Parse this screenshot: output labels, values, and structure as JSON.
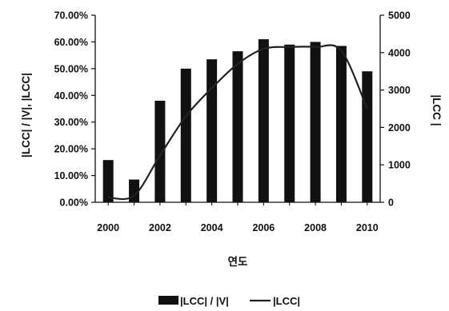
{
  "chart_data": {
    "type": "bar",
    "categories": [
      "2000",
      "2001",
      "2002",
      "2003",
      "2004",
      "2005",
      "2006",
      "2007",
      "2008",
      "2009",
      "2010"
    ],
    "x_tick_labels": [
      "2000",
      "2002",
      "2004",
      "2006",
      "2008",
      "2010"
    ],
    "xlabel": "연도",
    "ylabel_left": "|LCC| / |V|, |LCC|",
    "ylabel_right": "|LCC |",
    "ylim_left": [
      0,
      70
    ],
    "ylim_right": [
      0,
      5000
    ],
    "left_tick_labels": [
      "0.00%",
      "10.00%",
      "20.00%",
      "30.00%",
      "40.00%",
      "50.00%",
      "60.00%",
      "70.00%"
    ],
    "right_tick_labels": [
      "0",
      "1000",
      "2000",
      "3000",
      "4000",
      "5000"
    ],
    "grid": false,
    "legend_position": "bottom",
    "series": [
      {
        "name": "|LCC| / |V|",
        "kind": "bar",
        "axis": "left",
        "unit": "percent",
        "color": "#111111",
        "values": [
          15.8,
          8.5,
          38.0,
          50.0,
          53.5,
          56.5,
          61.0,
          59.0,
          60.0,
          58.5,
          49.0
        ]
      },
      {
        "name": "|LCC|",
        "kind": "line",
        "axis": "right",
        "color": "#222222",
        "values": [
          130,
          180,
          1250,
          2300,
          3050,
          3700,
          4100,
          4150,
          4150,
          4050,
          2500
        ]
      }
    ]
  }
}
